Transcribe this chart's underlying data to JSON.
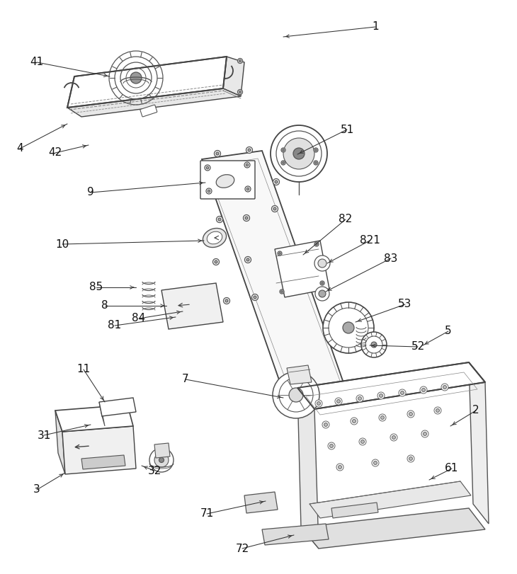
{
  "bg_color": "#ffffff",
  "lc": "#444444",
  "lc2": "#666666",
  "label_color": "#111111",
  "fig_width": 7.3,
  "fig_height": 8.11,
  "dpi": 100,
  "leaders": [
    [
      "1",
      530,
      38,
      400,
      52
    ],
    [
      "2",
      672,
      580,
      636,
      602
    ],
    [
      "4",
      28,
      210,
      95,
      175
    ],
    [
      "5",
      633,
      468,
      597,
      488
    ],
    [
      "7",
      262,
      536,
      400,
      562
    ],
    [
      "8",
      148,
      432,
      235,
      432
    ],
    [
      "9",
      128,
      272,
      290,
      258
    ],
    [
      "10",
      88,
      345,
      288,
      340
    ],
    [
      "11",
      118,
      522,
      148,
      568
    ],
    [
      "41",
      52,
      88,
      155,
      108
    ],
    [
      "42",
      78,
      216,
      125,
      205
    ],
    [
      "51",
      490,
      183,
      420,
      218
    ],
    [
      "52",
      590,
      490,
      522,
      488
    ],
    [
      "53",
      572,
      430,
      502,
      455
    ],
    [
      "61",
      638,
      662,
      606,
      678
    ],
    [
      "71",
      292,
      726,
      375,
      708
    ],
    [
      "72",
      342,
      775,
      415,
      756
    ],
    [
      "81",
      162,
      460,
      248,
      448
    ],
    [
      "82",
      488,
      310,
      428,
      360
    ],
    [
      "83",
      552,
      365,
      460,
      412
    ],
    [
      "84",
      196,
      450,
      258,
      440
    ],
    [
      "85",
      136,
      406,
      192,
      406
    ],
    [
      "821",
      522,
      340,
      462,
      372
    ],
    [
      "31",
      62,
      615,
      128,
      600
    ],
    [
      "32",
      218,
      665,
      200,
      658
    ],
    [
      "3",
      52,
      692,
      92,
      668
    ]
  ]
}
